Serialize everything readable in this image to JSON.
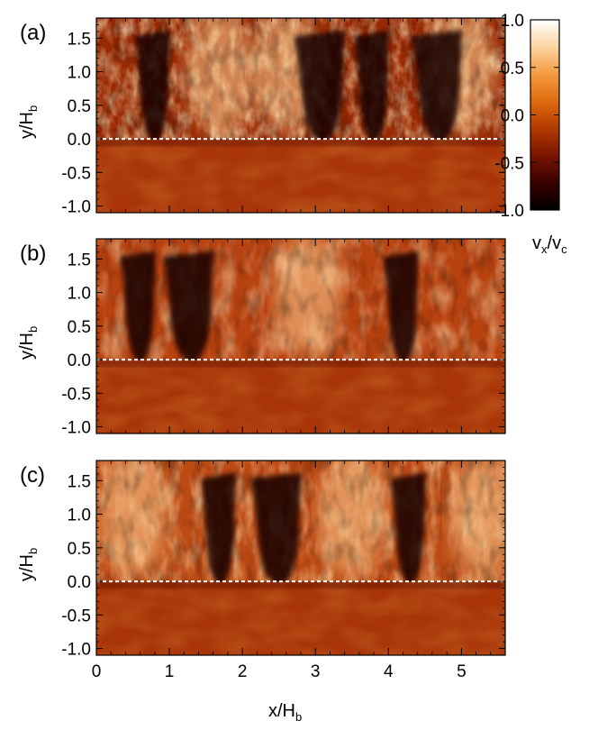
{
  "figure": {
    "panels": [
      {
        "label": "(a)",
        "ylabel_main": "y/H",
        "ylabel_sub": "b"
      },
      {
        "label": "(b)",
        "ylabel_main": "y/H",
        "ylabel_sub": "b"
      },
      {
        "label": "(c)",
        "ylabel_main": "y/H",
        "ylabel_sub": "b"
      }
    ],
    "xlabel_main": "x/H",
    "xlabel_sub": "b",
    "colorbar": {
      "label_v1": "v",
      "label_sub1": "x",
      "label_sep": "/",
      "label_v2": "v",
      "label_sub2": "c",
      "ticks": [
        "1.0",
        "0.5",
        "0.0",
        "-0.5",
        "-1.0"
      ],
      "range": [
        -1.0,
        1.0
      ],
      "colors": [
        "#000000",
        "#3a0000",
        "#7a1400",
        "#b23a00",
        "#e06a10",
        "#f59a40",
        "#fbd4a0",
        "#ffffff"
      ]
    },
    "ytick_labels": [
      "1.5",
      "1.0",
      "0.5",
      "0.0",
      "-0.5",
      "-1.0"
    ],
    "xtick_labels": [
      "0",
      "1",
      "2",
      "3",
      "4",
      "5"
    ]
  },
  "chart_data": [
    {
      "type": "heatmap",
      "title": "(a)",
      "xlabel": "x/Hb",
      "ylabel": "y/Hb",
      "xlim": [
        0,
        5.6
      ],
      "ylim": [
        -1.1,
        1.8
      ],
      "color_range": [
        -1.0,
        1.0
      ],
      "color_label": "vx/vc",
      "dashed_line_y": 0.0,
      "dark_plumes_x": [
        0.8,
        3.1,
        3.8,
        4.7
      ],
      "bright_regions_x": [
        1.7,
        2.6,
        5.0
      ]
    },
    {
      "type": "heatmap",
      "title": "(b)",
      "xlabel": "x/Hb",
      "ylabel": "y/Hb",
      "xlim": [
        0,
        5.6
      ],
      "ylim": [
        -1.1,
        1.8
      ],
      "color_range": [
        -1.0,
        1.0
      ],
      "color_label": "vx/vc",
      "dashed_line_y": 0.0,
      "dark_plumes_x": [
        0.6,
        1.3,
        4.2
      ],
      "bright_regions_x": [
        2.9
      ]
    },
    {
      "type": "heatmap",
      "title": "(c)",
      "xlabel": "x/Hb",
      "ylabel": "y/Hb",
      "xlim": [
        0,
        5.6
      ],
      "ylim": [
        -1.1,
        1.8
      ],
      "color_range": [
        -1.0,
        1.0
      ],
      "color_label": "vx/vc",
      "dashed_line_y": 0.0,
      "dark_plumes_x": [
        1.7,
        2.5,
        4.3
      ],
      "bright_regions_x": [
        0.5,
        3.5,
        5.3
      ]
    }
  ]
}
